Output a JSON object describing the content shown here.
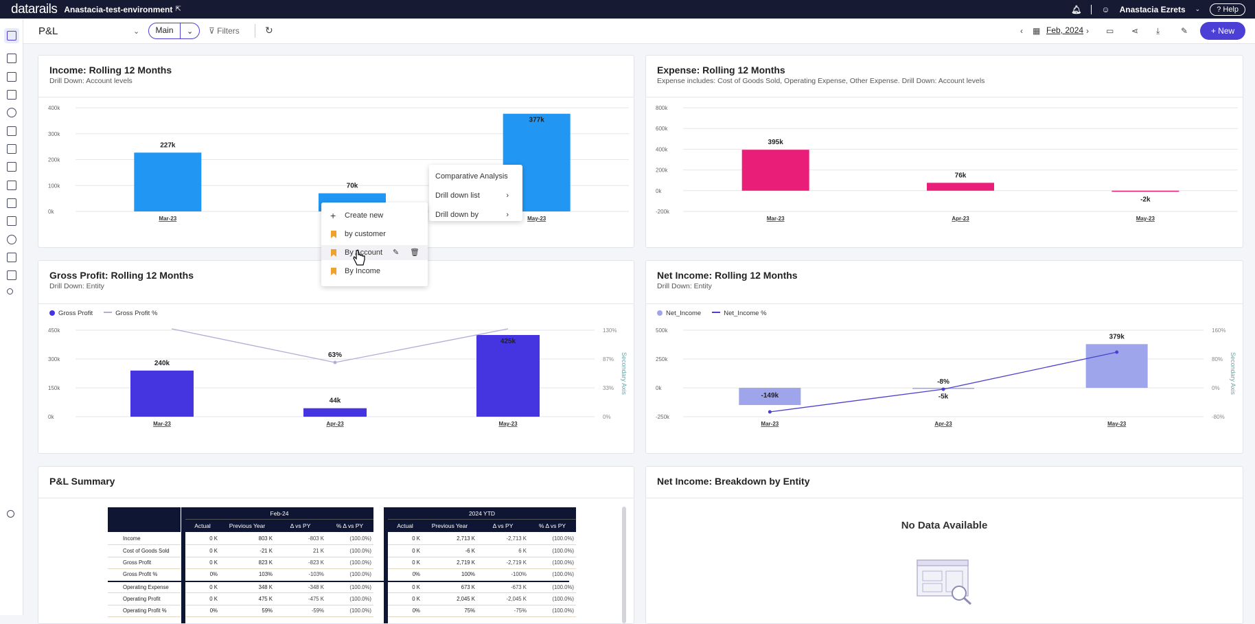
{
  "topbar": {
    "logo": "datarails",
    "environment": "Anastacia-test-environment",
    "user": "Anastacia Ezrets",
    "help": "Help"
  },
  "toolbar": {
    "page_title": "P&L",
    "view": "Main",
    "filters": "Filters",
    "period": "Feb, 2024",
    "new_label": "New"
  },
  "colors": {
    "accent": "#4b3fd6",
    "income_bar": "#2196f3",
    "expense_bar": "#e91e78",
    "gross_bar": "#4535e0",
    "net_bar": "#9fa5ea",
    "topbar": "#161b33"
  },
  "panels": {
    "income": {
      "title": "Income: Rolling 12 Months",
      "subtitle": "Drill Down: Account levels"
    },
    "expense": {
      "title": "Expense: Rolling 12 Months",
      "subtitle": "Expense includes: Cost of Goods Sold, Operating Expense, Other Expense. Drill Down: Account levels"
    },
    "gross": {
      "title": "Gross Profit: Rolling 12 Months",
      "subtitle": "Drill Down: Entity",
      "legend": [
        "Gross Profit",
        "Gross Profit %"
      ],
      "secondary_axis": "Secondary Axis"
    },
    "net": {
      "title": "Net Income: Rolling 12 Months",
      "subtitle": "Drill Down: Entity",
      "legend": [
        "Net_Income",
        "Net_Income %"
      ],
      "secondary_axis": "Secondary Axis"
    },
    "summary": {
      "title": "P&L Summary"
    },
    "breakdown": {
      "title": "Net Income: Breakdown by Entity",
      "empty": "No Data Available"
    }
  },
  "chart_data": [
    {
      "type": "bar",
      "title": "Income: Rolling 12 Months",
      "categories": [
        "Mar-23",
        "Apr-23",
        "May-23"
      ],
      "values": [
        227,
        70,
        377
      ],
      "labels": [
        "227k",
        "70k",
        "377k"
      ],
      "ylim": [
        0,
        400
      ],
      "yticks": [
        "400k",
        "300k",
        "200k",
        "100k",
        "0k"
      ]
    },
    {
      "type": "bar",
      "title": "Expense: Rolling 12 Months",
      "categories": [
        "Mar-23",
        "Apr-23",
        "May-23"
      ],
      "values": [
        395,
        76,
        -2
      ],
      "labels": [
        "395k",
        "76k",
        "-2k"
      ],
      "ylim": [
        -200,
        800
      ],
      "yticks": [
        "800k",
        "600k",
        "400k",
        "200k",
        "0k",
        "-200k"
      ]
    },
    {
      "type": "bar",
      "title": "Gross Profit: Rolling 12 Months",
      "categories": [
        "Mar-23",
        "Apr-23",
        "May-23"
      ],
      "series": [
        {
          "name": "Gross Profit",
          "values": [
            240,
            44,
            425
          ],
          "labels": [
            "240k",
            "44k",
            "425k"
          ]
        },
        {
          "name": "Gross Profit %",
          "values": [
            null,
            63,
            null
          ],
          "labels": [
            "",
            "63%",
            ""
          ]
        }
      ],
      "ylim": [
        0,
        450
      ],
      "yticks": [
        "450k",
        "300k",
        "150k",
        "0k"
      ],
      "y2ticks": [
        "130%",
        "87%",
        "33%",
        "0%"
      ]
    },
    {
      "type": "bar",
      "title": "Net Income: Rolling 12 Months",
      "categories": [
        "Mar-23",
        "Apr-23",
        "May-23"
      ],
      "series": [
        {
          "name": "Net_Income",
          "values": [
            -149,
            -5,
            379
          ],
          "labels": [
            "-149k",
            "-5k",
            "379k"
          ]
        },
        {
          "name": "Net_Income %",
          "values": [
            null,
            -8,
            null
          ],
          "labels": [
            "",
            "-8%",
            ""
          ]
        }
      ],
      "ylim": [
        -250,
        500
      ],
      "yticks": [
        "500k",
        "250k",
        "0k",
        "-250k"
      ],
      "y2ticks": [
        "160%",
        "80%",
        "0%",
        "-80%"
      ]
    }
  ],
  "context_menu": {
    "items": [
      "Comparative Analysis",
      "Drill down list",
      "Drill down by"
    ]
  },
  "submenu": {
    "create": "Create new",
    "items": [
      "by customer",
      "By Account",
      "By Income"
    ]
  },
  "pl_table": {
    "period1": "Feb-24",
    "period2": "2024 YTD",
    "columns": [
      "Actual",
      "Previous Year",
      "Δ vs PY",
      "% Δ vs PY"
    ],
    "rows": [
      {
        "label": "Income",
        "a": [
          "0 K",
          "803 K",
          "-803 K",
          "(100.0%)"
        ],
        "b": [
          "0 K",
          "2,713 K",
          "-2,713 K",
          "(100.0%)"
        ]
      },
      {
        "label": "Cost of Goods Sold",
        "a": [
          "0 K",
          "-21 K",
          "21 K",
          "(100.0%)"
        ],
        "b": [
          "0 K",
          "-6 K",
          "6 K",
          "(100.0%)"
        ]
      },
      {
        "label": "Gross Profit",
        "a": [
          "0 K",
          "823 K",
          "-823 K",
          "(100.0%)"
        ],
        "b": [
          "0 K",
          "2,719 K",
          "-2,719 K",
          "(100.0%)"
        ]
      },
      {
        "label": "Gross Profit %",
        "a": [
          "0%",
          "103%",
          "-103%",
          "(100.0%)"
        ],
        "b": [
          "0%",
          "100%",
          "-100%",
          "(100.0%)"
        ]
      },
      {
        "label": "Operating Expense",
        "a": [
          "0 K",
          "348 K",
          "-348 K",
          "(100.0%)"
        ],
        "b": [
          "0 K",
          "673 K",
          "-673 K",
          "(100.0%)"
        ]
      },
      {
        "label": "Operating Profit",
        "a": [
          "0 K",
          "475 K",
          "-475 K",
          "(100.0%)"
        ],
        "b": [
          "0 K",
          "2,045 K",
          "-2,045 K",
          "(100.0%)"
        ]
      },
      {
        "label": "Operating Profit %",
        "a": [
          "0%",
          "59%",
          "-59%",
          "(100.0%)"
        ],
        "b": [
          "0%",
          "75%",
          "-75%",
          "(100.0%)"
        ]
      }
    ]
  }
}
